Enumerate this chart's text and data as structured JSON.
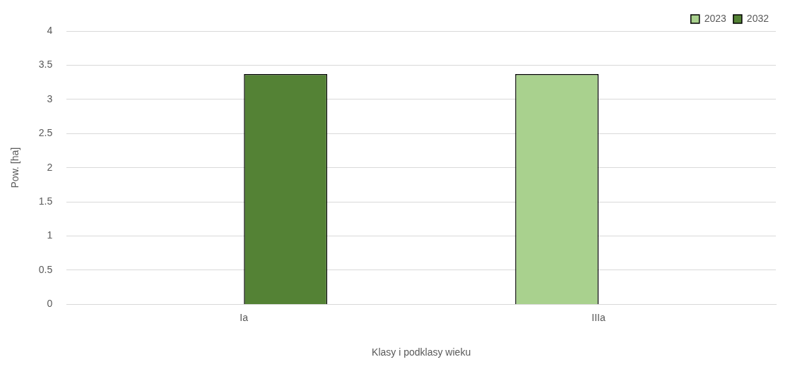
{
  "chart_data": {
    "type": "bar",
    "xlabel": "Klasy i podklasy wieku",
    "ylabel": "Pow. [ha]",
    "categories": [
      "Ia",
      "IIIa"
    ],
    "series": [
      {
        "name": "2023",
        "color": "#a9d18e",
        "values": [
          null,
          3.37
        ]
      },
      {
        "name": "2032",
        "color": "#548235",
        "values": [
          3.37,
          null
        ]
      }
    ],
    "ylim": [
      0,
      4
    ],
    "yticks": [
      0,
      0.5,
      1,
      1.5,
      2,
      2.5,
      3,
      3.5,
      4
    ],
    "grid": "y",
    "legend": "top right"
  }
}
